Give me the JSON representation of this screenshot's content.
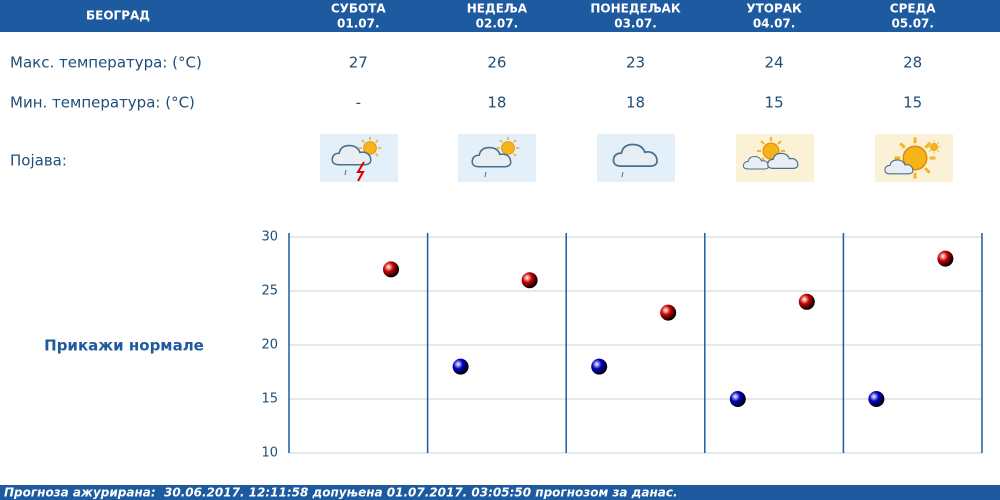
{
  "header": {
    "city": "БЕОГРАД",
    "days": [
      {
        "name": "СУБОТА",
        "date": "01.07."
      },
      {
        "name": "НЕДЕЉА",
        "date": "02.07."
      },
      {
        "name": "ПОНЕДЕЉАК",
        "date": "03.07."
      },
      {
        "name": "УТОРАК",
        "date": "04.07."
      },
      {
        "name": "СРЕДА",
        "date": "05.07."
      }
    ]
  },
  "rows": {
    "max_label": "Макс. температура: (°C)",
    "min_label": "Мин. температура: (°C)",
    "phenomenon_label": "Појава:"
  },
  "link": "Прикажи нормале",
  "footer": "Прогноза ажурирана:  30.06.2017. 12:11:58 допуњена 01.07.2017. 03:05:50 прогнозом за данас.",
  "chart_data": {
    "type": "scatter",
    "ylim": [
      10,
      30
    ],
    "yticks": [
      10,
      15,
      20,
      25,
      30
    ],
    "grid": true,
    "series": [
      {
        "color": "#cc0000",
        "values": [
          27,
          26,
          23,
          24,
          28
        ]
      },
      {
        "color": "#0000cc",
        "values": [
          null,
          18,
          18,
          15,
          15
        ],
        "value_labels": [
          "-",
          "18",
          "18",
          "15",
          "15"
        ]
      }
    ]
  }
}
